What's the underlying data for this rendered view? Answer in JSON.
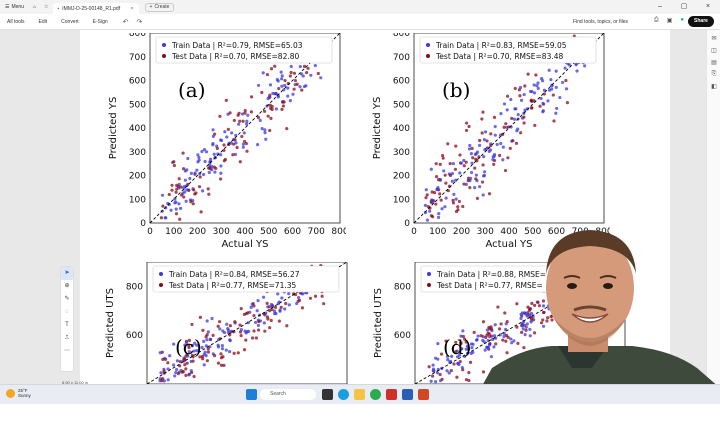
{
  "titlebar": {
    "menu_label": "Menu",
    "tab_title": "IMMJ-D-25-00148_R1.pdf",
    "new_tab_label": "Create"
  },
  "menubar": {
    "items": [
      "All tools",
      "Edit",
      "Convert",
      "E-Sign"
    ],
    "search_placeholder": "Find tools, topics, or files",
    "share_label": "Share"
  },
  "status": {
    "page_size": "8.50 x 11.00 in"
  },
  "taskbar": {
    "temperature": "25°F",
    "weather_text": "Sunny",
    "search_label": "Search"
  },
  "colors": {
    "train": "#3a3adf",
    "test": "#8b0a1a",
    "share_bg": "#111111"
  },
  "chart_data": [
    {
      "type": "scatter",
      "panel_label": "(a)",
      "xlabel": "Actual YS",
      "ylabel": "Predicted YS",
      "xlim": [
        0,
        800
      ],
      "ylim": [
        0,
        800
      ],
      "xticks": [
        "0",
        "100",
        "200",
        "300",
        "400",
        "500",
        "600",
        "700",
        "800"
      ],
      "yticks": [
        "0",
        "100",
        "200",
        "300",
        "400",
        "500",
        "600",
        "700",
        "800"
      ],
      "legend": [
        "Train Data | R²=0.79, RMSE=65.03",
        "Test Data | R²=0.70, RMSE=82.80"
      ],
      "legend_position": "top-left",
      "seed": 11
    },
    {
      "type": "scatter",
      "panel_label": "(b)",
      "xlabel": "Actual YS",
      "ylabel": "Predicted YS",
      "xlim": [
        0,
        800
      ],
      "ylim": [
        0,
        800
      ],
      "xticks": [
        "0",
        "100",
        "200",
        "300",
        "400",
        "500",
        "600",
        "700",
        "800"
      ],
      "yticks": [
        "0",
        "100",
        "200",
        "300",
        "400",
        "500",
        "600",
        "700",
        "800"
      ],
      "legend": [
        "Train Data | R²=0.83, RMSE=59.05",
        "Test Data | R²=0.70, RMSE=83.48"
      ],
      "legend_position": "top-left",
      "seed": 23
    },
    {
      "type": "scatter",
      "panel_label": "(c)",
      "xlabel": "",
      "ylabel": "Predicted UTS",
      "xlim": [
        0,
        1000
      ],
      "ylim": [
        400,
        900
      ],
      "xticks": [],
      "yticks": [
        "600",
        "800"
      ],
      "legend": [
        "Train Data | R²=0.84, RMSE=56.27",
        "Test Data | R²=0.77, RMSE=71.35"
      ],
      "legend_position": "top-left",
      "seed": 37
    },
    {
      "type": "scatter",
      "panel_label": "(d)",
      "xlabel": "",
      "ylabel": "Predicted UTS",
      "xlim": [
        0,
        1000
      ],
      "ylim": [
        400,
        900
      ],
      "xticks": [],
      "yticks": [
        "600",
        "800"
      ],
      "legend": [
        "Train Data | R²=0.88, RMSE=",
        "Test Data | R²=0.77, RMSE="
      ],
      "legend_position": "top-left",
      "seed": 51
    }
  ]
}
